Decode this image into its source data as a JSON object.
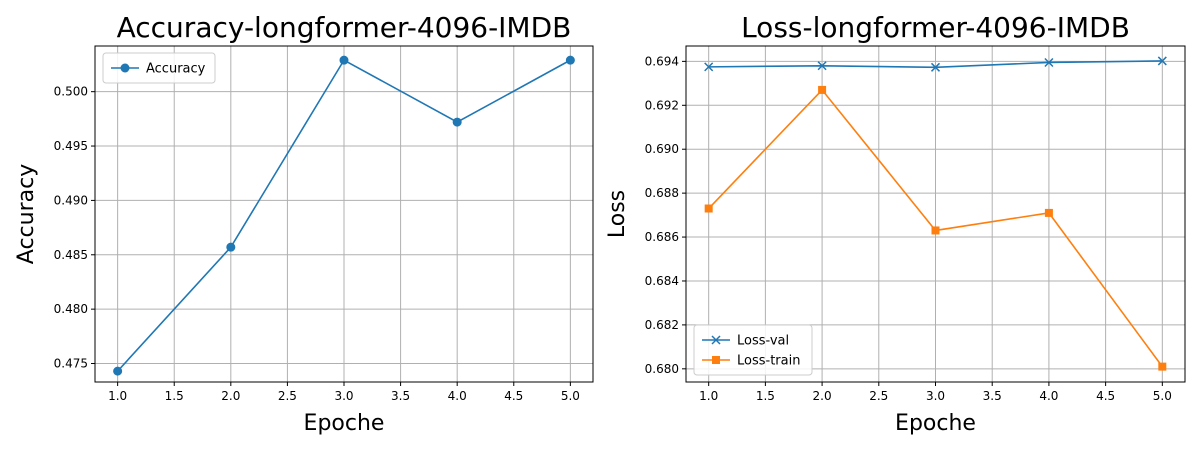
{
  "chart_data": [
    {
      "type": "line",
      "title": "Accuracy-longformer-4096-IMDB",
      "xlabel": "Epoche",
      "ylabel": "Accuracy",
      "xlim": [
        0.8,
        5.2
      ],
      "ylim": [
        0.4733,
        0.5042
      ],
      "xticks": [
        "1.0",
        "1.5",
        "2.0",
        "2.5",
        "3.0",
        "3.5",
        "4.0",
        "4.5",
        "5.0"
      ],
      "yticks": [
        "0.475",
        "0.480",
        "0.485",
        "0.490",
        "0.495",
        "0.500"
      ],
      "grid": true,
      "legend_position": "top-left",
      "x": [
        1,
        2,
        3,
        4,
        5
      ],
      "series": [
        {
          "name": "Accuracy",
          "values": [
            0.4743,
            0.4857,
            0.5029,
            0.4972,
            0.5029
          ],
          "color": "#1f77b4",
          "marker": "circle"
        }
      ]
    },
    {
      "type": "line",
      "title": "Loss-longformer-4096-IMDB",
      "xlabel": "Epoche",
      "ylabel": "Loss",
      "xlim": [
        0.8,
        5.2
      ],
      "ylim": [
        0.6794,
        0.6947
      ],
      "xticks": [
        "1.0",
        "1.5",
        "2.0",
        "2.5",
        "3.0",
        "3.5",
        "4.0",
        "4.5",
        "5.0"
      ],
      "yticks": [
        "0.680",
        "0.682",
        "0.684",
        "0.686",
        "0.688",
        "0.690",
        "0.692",
        "0.694"
      ],
      "grid": true,
      "legend_position": "bottom-left",
      "x": [
        1,
        2,
        3,
        4,
        5
      ],
      "series": [
        {
          "name": "Loss-val",
          "values": [
            0.69375,
            0.6938,
            0.69373,
            0.69395,
            0.69402
          ],
          "color": "#1f77b4",
          "marker": "x"
        },
        {
          "name": "Loss-train",
          "values": [
            0.6873,
            0.6927,
            0.6863,
            0.6871,
            0.6801
          ],
          "color": "#ff7f0e",
          "marker": "square"
        }
      ]
    }
  ]
}
